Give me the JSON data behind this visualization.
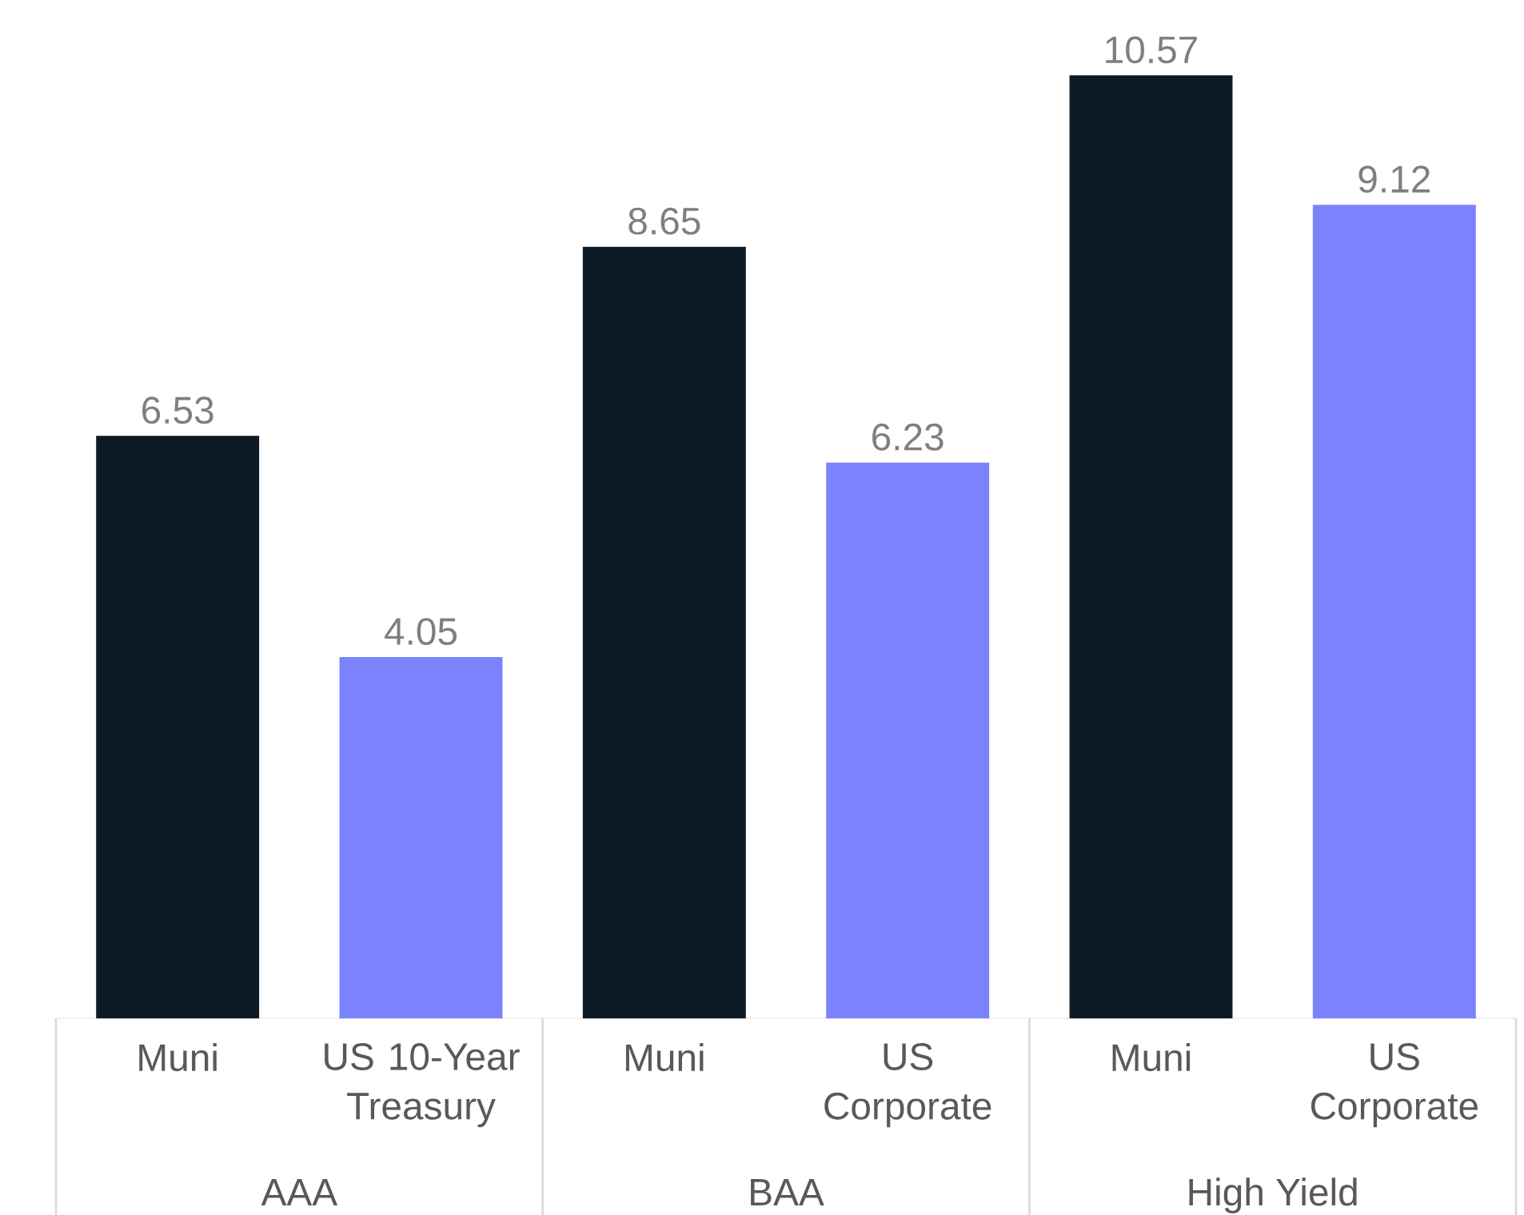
{
  "chart_data": {
    "type": "bar",
    "categories": [
      "Muni",
      "US 10-Year Treasury",
      "Muni",
      "US Corporate",
      "Muni",
      "US Corporate"
    ],
    "values": [
      6.53,
      4.05,
      8.65,
      6.23,
      10.57,
      9.12
    ],
    "colors": [
      "#0e1926",
      "#7a82fc",
      "#0e1926",
      "#7a82fc",
      "#0e1926",
      "#7a82fc"
    ],
    "data_labels": true,
    "annotations": [
      "AAA",
      "BAA",
      "High Yield"
    ]
  }
}
